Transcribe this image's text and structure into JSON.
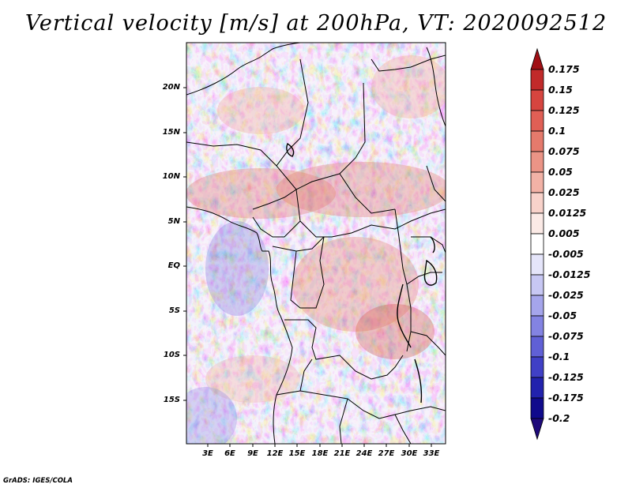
{
  "title": "Vertical velocity [m/s] at 200hPa, VT: 2020092512",
  "latitude_labels": [
    "20N",
    "15N",
    "10N",
    "5N",
    "EQ",
    "5S",
    "10S",
    "15S"
  ],
  "longitude_labels": [
    "3E",
    "6E",
    "9E",
    "12E",
    "15E",
    "18E",
    "21E",
    "24E",
    "27E",
    "30E",
    "33E"
  ],
  "colorbar": {
    "levels": [
      "0.175",
      "0.15",
      "0.125",
      "0.1",
      "0.075",
      "0.05",
      "0.025",
      "0.0125",
      "0.005",
      "-0.005",
      "-0.0125",
      "-0.025",
      "-0.05",
      "-0.075",
      "-0.1",
      "-0.125",
      "-0.175",
      "-0.2"
    ],
    "colors": [
      "#a00f14",
      "#c12a2a",
      "#d6453f",
      "#e05f55",
      "#e57a6c",
      "#eb9486",
      "#f2b2a6",
      "#f8d2ca",
      "#fbeae6",
      "#ffffff",
      "#e5e5fa",
      "#c7c7f3",
      "#a5a5eb",
      "#8383e2",
      "#6060d6",
      "#4040c6",
      "#2222ad",
      "#100a8c",
      "#1e0a7a"
    ]
  },
  "credit": "GrADS: IGES/COLA"
}
